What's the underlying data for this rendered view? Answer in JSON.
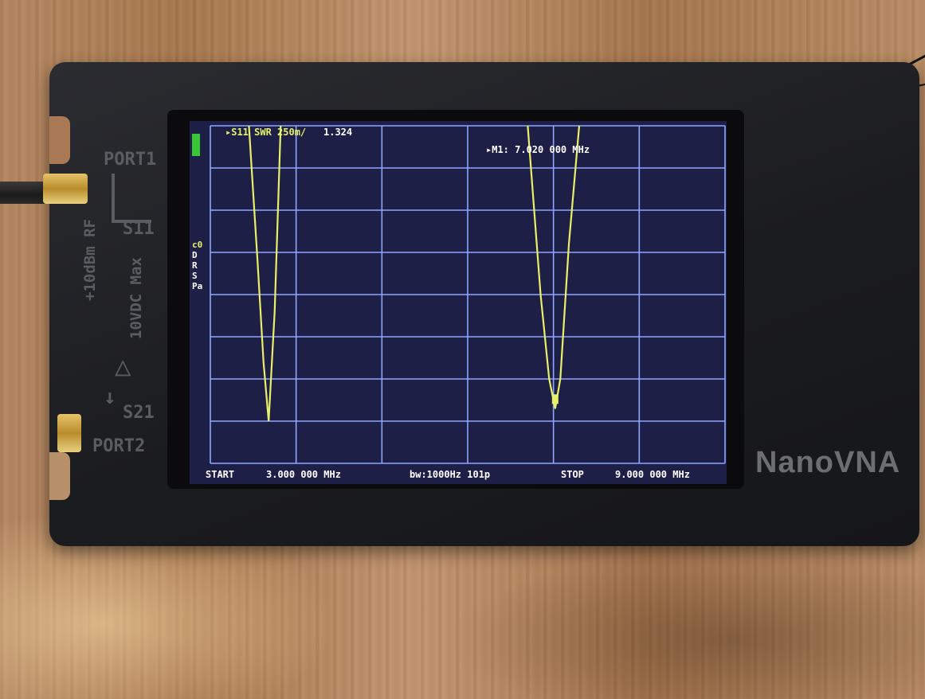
{
  "device": {
    "brand": "NanoVNA",
    "port1_label": "PORT1",
    "port2_label": "PORT2",
    "s11_label": "S11",
    "s21_label": "S21",
    "power_label_line1": "+10dBm RF",
    "power_label_line2": "10VDC Max"
  },
  "screen": {
    "trace_label": "▸S11 SWR 250m/",
    "trace_value": "1.324",
    "marker_info": "▸M1: 7.020 000 MHz",
    "side_labels": [
      "c0",
      "D",
      "R",
      "S",
      "Pa"
    ],
    "start_label": "START",
    "start_value": "3.000 000 MHz",
    "bandwidth_info": "bw:1000Hz 101p",
    "stop_label": "STOP",
    "stop_value": "9.000 000 MHz",
    "marker_number": "1"
  },
  "chart_data": {
    "type": "line",
    "xlim": [
      3.0,
      9.0
    ],
    "series": [
      {
        "name": "S11 SWR",
        "color": "#e8f06a",
        "x": [
          3.45,
          3.55,
          3.62,
          3.68,
          3.75,
          3.82,
          6.7,
          6.85,
          6.95,
          7.02,
          7.08,
          7.18,
          7.3
        ],
        "y": [
          3.0,
          2.2,
          1.6,
          1.25,
          1.9,
          3.0,
          3.0,
          2.0,
          1.5,
          1.324,
          1.5,
          2.3,
          3.0
        ]
      }
    ]
  },
  "colors": {
    "screen_background": "#1e1f46",
    "grid": "#8da6ff",
    "trace": "#e8f06a"
  }
}
